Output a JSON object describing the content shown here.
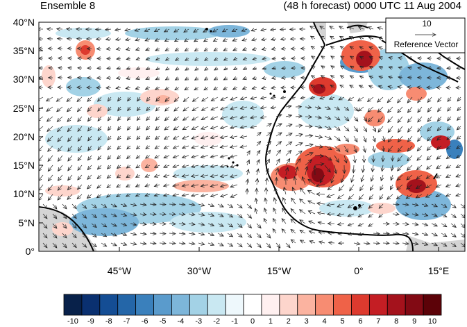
{
  "header": {
    "left_title": "Ensemble 8",
    "right_title": "(48 h forecast) 0000 UTC 11 Aug 2004"
  },
  "axes": {
    "y_labels": [
      "40°N",
      "35°N",
      "30°N",
      "25°N",
      "20°N",
      "15°N",
      "10°N",
      "5°N",
      "0°"
    ],
    "x_labels": [
      "45°W",
      "30°W",
      "15°W",
      "0°",
      "15°E"
    ]
  },
  "reference_vector": {
    "value": "10",
    "label": "Reference Vector"
  },
  "colorbar": {
    "labels": [
      "-10",
      "-9",
      "-8",
      "-7",
      "-6",
      "-5",
      "-4",
      "-3",
      "-2",
      "-1",
      "0",
      "1",
      "2",
      "3",
      "4",
      "5",
      "6",
      "7",
      "8",
      "9",
      "10"
    ],
    "colors": [
      "#08214a",
      "#0a3070",
      "#144d94",
      "#2466a8",
      "#3a80bc",
      "#5a9bcc",
      "#7db6da",
      "#a3d2e6",
      "#c9e8f2",
      "#eef8fc",
      "#ffffff",
      "#fff0f0",
      "#fdd5cc",
      "#fbb3a0",
      "#f78c72",
      "#ef6248",
      "#dd3a2e",
      "#c41e24",
      "#a4121c",
      "#820a14",
      "#5c0208"
    ]
  },
  "map": {
    "land_color": "#d4d4d4"
  }
}
